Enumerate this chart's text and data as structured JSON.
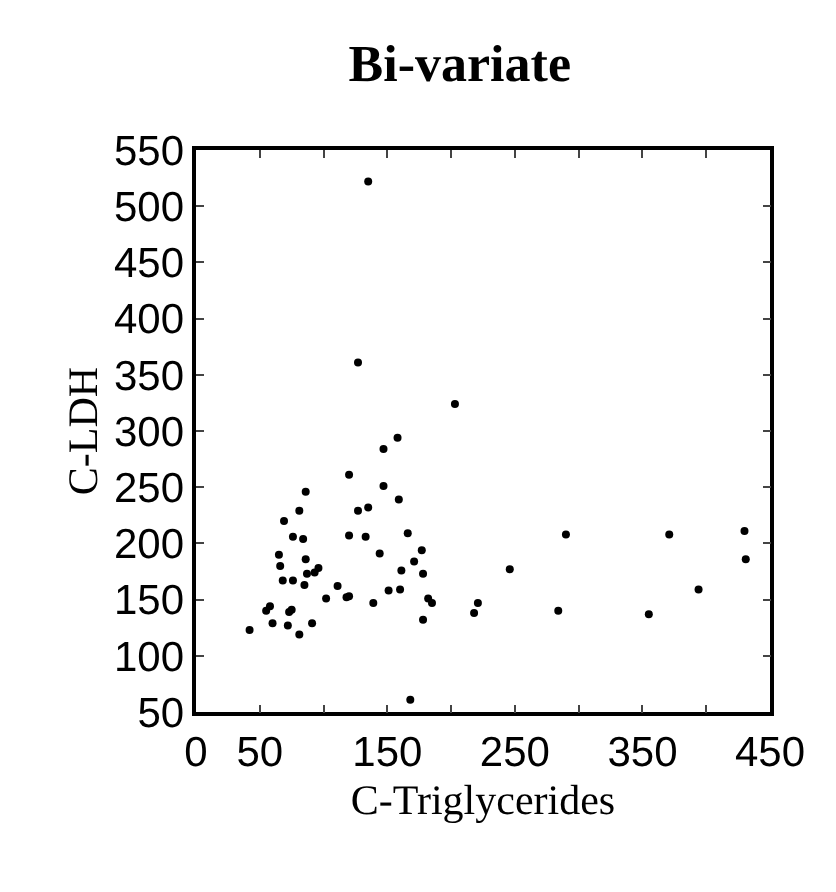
{
  "chart_data": {
    "type": "scatter",
    "title": "Bi-variate",
    "xlabel": "C-Triglycerides",
    "ylabel": "C-LDH",
    "x": [
      42,
      55,
      58,
      60,
      65,
      66,
      68,
      69,
      72,
      73,
      75,
      76,
      76,
      81,
      81,
      84,
      85,
      86,
      86,
      87,
      91,
      93,
      96,
      102,
      111,
      118,
      120,
      120,
      120,
      127,
      127,
      133,
      135,
      139,
      144,
      147,
      147,
      151,
      158,
      159,
      160,
      161,
      166,
      168,
      171,
      177,
      178,
      178,
      182,
      185,
      203,
      218,
      221,
      246,
      284,
      290,
      355,
      371,
      394,
      430,
      431,
      135
    ],
    "series": [
      {
        "color": "#000000",
        "values": [
          123,
          140,
          144,
          129,
          190,
          180,
          167,
          220,
          127,
          139,
          141,
          167,
          206,
          229,
          119,
          204,
          163,
          246,
          186,
          173,
          129,
          174,
          178,
          151,
          162,
          152,
          153,
          261,
          207,
          229,
          361,
          206,
          232,
          147,
          191,
          284,
          251,
          158,
          294,
          239,
          159,
          176,
          209,
          61,
          184,
          194,
          173,
          132,
          151,
          147,
          324,
          138,
          147,
          177,
          140,
          208,
          137,
          208,
          159,
          211,
          186,
          522
        ]
      }
    ],
    "xlim": [
      0,
      450
    ],
    "xticks": [
      0,
      50,
      {
        "value": 100,
        "label": null
      },
      150,
      {
        "value": 200,
        "label": null
      },
      250,
      {
        "value": 300,
        "label": null
      },
      350,
      {
        "value": 400,
        "label": null
      },
      450
    ],
    "ylim": [
      50,
      550
    ],
    "yticks": [
      50,
      100,
      150,
      200,
      250,
      300,
      350,
      400,
      450,
      500,
      550
    ],
    "marker": "circle",
    "grid": false,
    "legend": false
  }
}
